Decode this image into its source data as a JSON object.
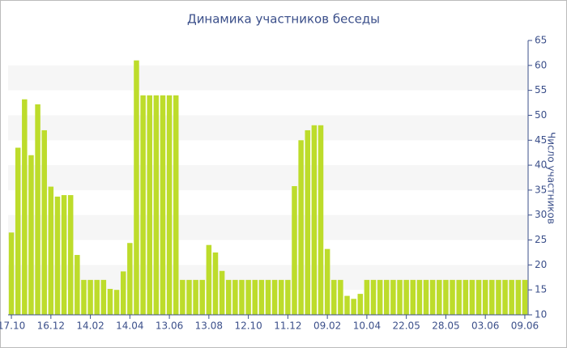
{
  "chart_data": {
    "type": "bar",
    "title": "Динамика участников беседы",
    "y_label": "Число участников",
    "categories": [
      "17.10",
      null,
      null,
      null,
      null,
      null,
      "16.12",
      null,
      null,
      null,
      null,
      null,
      "14.02",
      null,
      null,
      null,
      null,
      null,
      "14.04",
      null,
      null,
      null,
      null,
      null,
      "13.06",
      null,
      null,
      null,
      null,
      null,
      "13.08",
      null,
      null,
      null,
      null,
      null,
      "12.10",
      null,
      null,
      null,
      null,
      null,
      "11.12",
      null,
      null,
      null,
      null,
      null,
      "09.02",
      null,
      null,
      null,
      null,
      null,
      "10.04",
      null,
      null,
      null,
      null,
      null,
      "22.05",
      null,
      null,
      null,
      null,
      null,
      "28.05",
      null,
      null,
      null,
      null,
      null,
      "03.06",
      null,
      null,
      null,
      null,
      null,
      "09.06"
    ],
    "values": [
      26.5,
      43.5,
      53.2,
      42,
      52.2,
      47,
      35.7,
      33.7,
      34,
      34,
      22,
      17,
      17,
      17,
      17,
      15.2,
      15,
      18.7,
      24.4,
      61,
      54,
      54,
      54,
      54,
      54,
      54,
      17,
      17,
      17,
      17,
      24,
      22.5,
      18.8,
      17,
      17,
      17,
      17,
      17,
      17,
      17,
      17,
      17,
      17,
      35.8,
      45,
      47,
      48,
      48,
      23.2,
      17,
      17,
      13.8,
      13.2,
      14.2,
      17,
      17,
      17,
      17,
      17,
      17,
      17,
      17,
      17,
      17,
      17,
      17,
      17,
      17,
      17,
      17,
      17,
      17,
      17,
      17,
      17,
      17,
      17,
      17,
      17
    ],
    "color": "#bddc2b",
    "ylim": [
      10,
      65
    ],
    "yticks": [
      10,
      15,
      20,
      25,
      30,
      35,
      40,
      45,
      50,
      55,
      60,
      65
    ],
    "grid": "bands"
  }
}
